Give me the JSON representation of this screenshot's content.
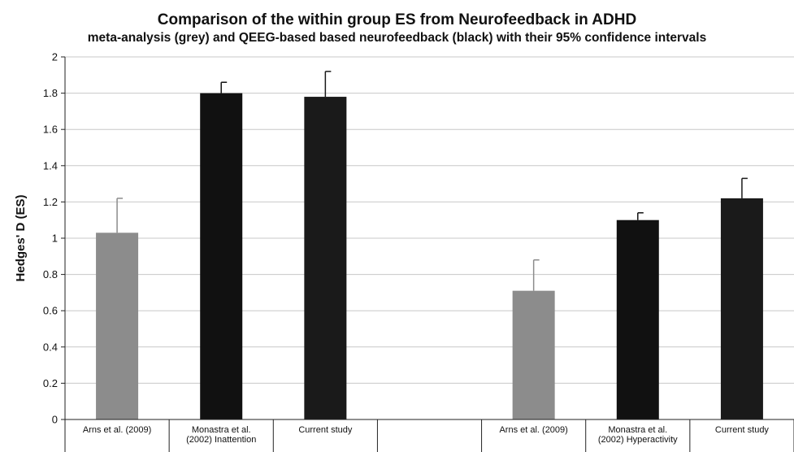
{
  "chart_data": {
    "type": "bar",
    "title": "Comparison of the within group ES from Neurofeedback in ADHD",
    "subtitle": "meta-analysis (grey) and QEEG-based based neurofeedback (black) with their 95% confidence intervals",
    "ylabel": "Hedges' D (ES)",
    "xlabel": "",
    "ylim": [
      0,
      2
    ],
    "yticks": [
      "0",
      "0.2",
      "0.4",
      "0.6",
      "0.8",
      "1",
      "1.2",
      "1.4",
      "1.6",
      "1.8",
      "2"
    ],
    "grid": true,
    "categories": [
      [
        "Arns et al. (2009)"
      ],
      [
        "Monastra et al.",
        "(2002) Inattention"
      ],
      [
        "Current study"
      ],
      [
        ""
      ],
      [
        "Arns et al. (2009)"
      ],
      [
        "Monastra et al.",
        "(2002) Hyperactivity"
      ],
      [
        "Current study"
      ]
    ],
    "values": [
      1.03,
      1.8,
      1.78,
      null,
      0.71,
      1.1,
      1.22
    ],
    "error_upper": [
      1.22,
      1.86,
      1.92,
      null,
      0.88,
      1.14,
      1.33
    ],
    "colors": [
      "#8c8c8c",
      "#111111",
      "#1a1a1a",
      null,
      "#8c8c8c",
      "#111111",
      "#1a1a1a"
    ]
  }
}
